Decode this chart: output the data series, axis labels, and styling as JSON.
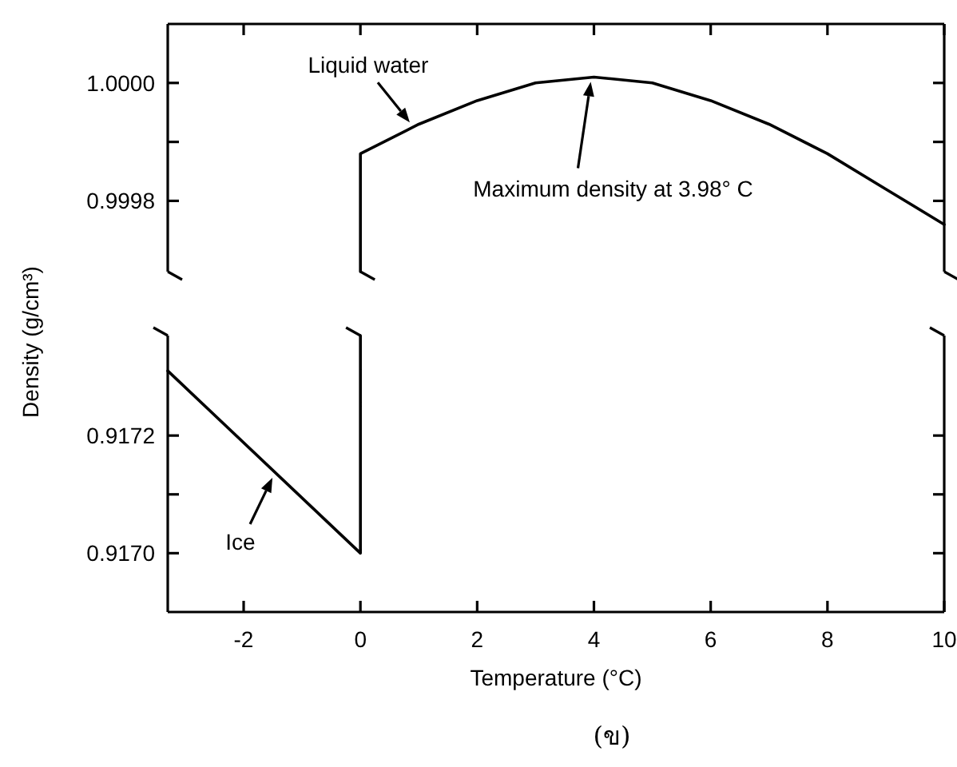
{
  "chart_data": [
    {
      "type": "line",
      "ylabel": "Density (g/cm³)",
      "xlim": [
        -3.3,
        10
      ],
      "ylim": [
        0.99968,
        1.0001
      ],
      "xticks": [
        -2,
        0,
        2,
        4,
        6,
        8,
        10
      ],
      "yticks": [
        0.9998,
        {
          "value": 0.9999,
          "label": null
        },
        {
          "value": 1.0,
          "label": "1.0000"
        }
      ],
      "tick_labels": "y",
      "series": [
        {
          "name": "Liquid water",
          "color": "#000000",
          "x": [
            0,
            0,
            1,
            2,
            3,
            4,
            5,
            6,
            7,
            8,
            9,
            10
          ],
          "values": [
            0.99968,
            0.99988,
            0.99993,
            0.99997,
            1.0,
            1.00001,
            1.0,
            0.99997,
            0.99993,
            0.99988,
            0.99982,
            0.99976
          ]
        }
      ],
      "annotations": [
        "Maximum density at 3.98° C"
      ]
    },
    {
      "type": "line",
      "xlabel": "Temperature (°C)",
      "xlim": [
        -3.3,
        10
      ],
      "ylim": [
        0.9169,
        0.91737
      ],
      "xticks": [
        -2,
        0,
        2,
        4,
        6,
        8,
        10
      ],
      "yticks": [
        {
          "value": 0.917,
          "label": "0.9170"
        },
        {
          "value": 0.9171,
          "label": null
        },
        0.9172
      ],
      "series": [
        {
          "name": "Ice",
          "color": "#000000",
          "x": [
            -3.3,
            0,
            0
          ],
          "values": [
            0.91731,
            0.917,
            0.91737
          ]
        }
      ],
      "annotations": [
        "(ข)"
      ]
    }
  ]
}
